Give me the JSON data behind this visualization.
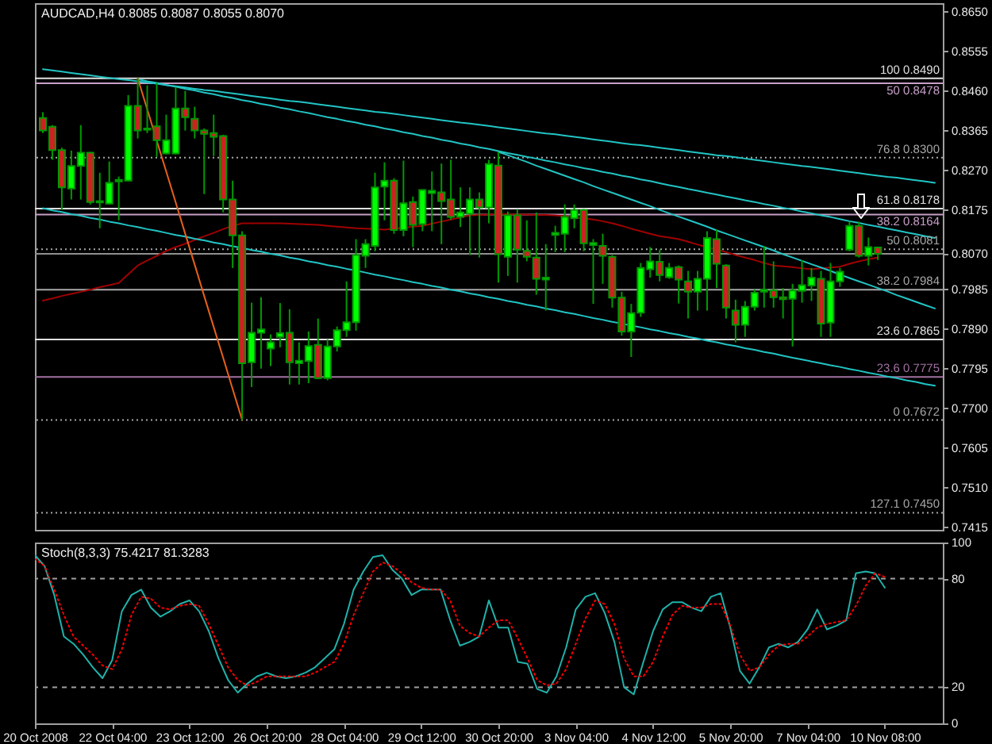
{
  "chart_data": [
    {
      "type": "candlestick",
      "title": "AUDCAD,H4 0.8085 0.8087 0.8055 0.8070",
      "categories": [
        null,
        null,
        null,
        null,
        null,
        null,
        null,
        null,
        null,
        null,
        null,
        null,
        null,
        null,
        null,
        null,
        null,
        null,
        null,
        null,
        null,
        null,
        null,
        null,
        null,
        null,
        null,
        null,
        null,
        null,
        null,
        null,
        null,
        null,
        null,
        null,
        null,
        null,
        null,
        null,
        null,
        null,
        null,
        null,
        null,
        null,
        null,
        null,
        null,
        null,
        null,
        null,
        null,
        null,
        null,
        null,
        null,
        null,
        null,
        null,
        null,
        null,
        null,
        null,
        null,
        null,
        null,
        null,
        null,
        null,
        null,
        null,
        null,
        null,
        null,
        null,
        null,
        null,
        null,
        null,
        null,
        null,
        null,
        null,
        null,
        null,
        null,
        null,
        null,
        null,
        null,
        null,
        null,
        null,
        null
      ],
      "ohlc": [
        [
          0.8395,
          0.8409,
          0.8359,
          0.8365
        ],
        [
          0.8374,
          0.8378,
          0.8295,
          0.8318
        ],
        [
          0.8318,
          0.8324,
          0.8175,
          0.8229
        ],
        [
          0.8226,
          0.8317,
          0.82,
          0.828
        ],
        [
          0.828,
          0.8378,
          0.82,
          0.8312
        ],
        [
          0.8312,
          0.8314,
          0.8188,
          0.8194
        ],
        [
          0.8193,
          0.8264,
          0.8131,
          0.8196
        ],
        [
          0.819,
          0.8291,
          0.8188,
          0.824
        ],
        [
          0.8243,
          0.8255,
          0.815,
          0.8247
        ],
        [
          0.8245,
          0.845,
          0.8244,
          0.8424
        ],
        [
          0.8424,
          0.849,
          0.8346,
          0.8365
        ],
        [
          0.8367,
          0.8473,
          0.8359,
          0.837
        ],
        [
          0.8375,
          0.8479,
          0.8302,
          0.8342
        ],
        [
          0.831,
          0.8403,
          0.8308,
          0.8342
        ],
        [
          0.831,
          0.8469,
          0.8308,
          0.8418
        ],
        [
          0.8418,
          0.846,
          0.8365,
          0.8397
        ],
        [
          0.8393,
          0.8422,
          0.8346,
          0.8365
        ],
        [
          0.8365,
          0.837,
          0.8213,
          0.8357
        ],
        [
          0.8359,
          0.8403,
          0.8304,
          0.835
        ],
        [
          0.8352,
          0.8355,
          0.8169,
          0.82
        ],
        [
          0.82,
          0.8245,
          0.8036,
          0.8114
        ],
        [
          0.8114,
          0.8124,
          0.7672,
          0.7808
        ],
        [
          0.781,
          0.7953,
          0.7751,
          0.7881
        ],
        [
          0.7881,
          0.7966,
          0.7795,
          0.7889
        ],
        [
          0.7843,
          0.7877,
          0.7801,
          0.7858
        ],
        [
          0.7871,
          0.7952,
          0.7846,
          0.788
        ],
        [
          0.7881,
          0.7937,
          0.7757,
          0.781
        ],
        [
          0.7808,
          0.7858,
          0.7757,
          0.7814
        ],
        [
          0.7813,
          0.7884,
          0.776,
          0.7849
        ],
        [
          0.7852,
          0.7915,
          0.777,
          0.7772
        ],
        [
          0.7772,
          0.7865,
          0.7767,
          0.7848
        ],
        [
          0.7848,
          0.7896,
          0.7836,
          0.7887
        ],
        [
          0.7887,
          0.8004,
          0.7871,
          0.7906
        ],
        [
          0.7906,
          0.8105,
          0.7886,
          0.8067
        ],
        [
          0.8065,
          0.8105,
          0.8036,
          0.8093
        ],
        [
          0.8089,
          0.8264,
          0.8076,
          0.8229
        ],
        [
          0.8231,
          0.8289,
          0.815,
          0.8245
        ],
        [
          0.8245,
          0.8251,
          0.8118,
          0.8127
        ],
        [
          0.8127,
          0.8293,
          0.8112,
          0.8191
        ],
        [
          0.8194,
          0.8207,
          0.8086,
          0.8139
        ],
        [
          0.8141,
          0.8224,
          0.8124,
          0.8223
        ],
        [
          0.8215,
          0.8267,
          0.8124,
          0.8221
        ],
        [
          0.8217,
          0.8286,
          0.8093,
          0.8196
        ],
        [
          0.82,
          0.8295,
          0.8152,
          0.8158
        ],
        [
          0.8158,
          0.8229,
          0.8134,
          0.8169
        ],
        [
          0.8166,
          0.8229,
          0.8067,
          0.82
        ],
        [
          0.82,
          0.8217,
          0.8061,
          0.8181
        ],
        [
          0.8181,
          0.8295,
          0.8143,
          0.8285
        ],
        [
          0.8281,
          0.8314,
          0.8001,
          0.8069
        ],
        [
          0.8063,
          0.8171,
          0.8017,
          0.8162
        ],
        [
          0.8162,
          0.8177,
          0.8001,
          0.808
        ],
        [
          0.8077,
          0.815,
          0.8052,
          0.8063
        ],
        [
          0.8061,
          0.8169,
          0.7972,
          0.801
        ],
        [
          0.8008,
          0.8093,
          0.7934,
          0.8013
        ],
        [
          0.8115,
          0.8137,
          0.8074,
          0.812
        ],
        [
          0.8118,
          0.8188,
          0.8074,
          0.8158
        ],
        [
          0.8155,
          0.8188,
          0.8131,
          0.8175
        ],
        [
          0.8175,
          0.8177,
          0.8076,
          0.8095
        ],
        [
          0.8091,
          0.8105,
          0.795,
          0.8096
        ],
        [
          0.8089,
          0.8118,
          0.7998,
          0.8065
        ],
        [
          0.8063,
          0.8067,
          0.7941,
          0.7965
        ],
        [
          0.7965,
          0.7979,
          0.7874,
          0.7884
        ],
        [
          0.7884,
          0.795,
          0.7823,
          0.7928
        ],
        [
          0.7929,
          0.8048,
          0.7919,
          0.8036
        ],
        [
          0.8033,
          0.8086,
          0.8013,
          0.8052
        ],
        [
          0.8051,
          0.808,
          0.8004,
          0.8019
        ],
        [
          0.8014,
          0.8048,
          0.801,
          0.8036
        ],
        [
          0.8038,
          0.8042,
          0.7951,
          0.8008
        ],
        [
          0.8004,
          0.8029,
          0.7915,
          0.7979
        ],
        [
          0.7979,
          0.8029,
          0.7934,
          0.801
        ],
        [
          0.801,
          0.8124,
          0.7934,
          0.8108
        ],
        [
          0.8105,
          0.8128,
          0.7988,
          0.8046
        ],
        [
          0.8042,
          0.8045,
          0.7915,
          0.7941
        ],
        [
          0.7934,
          0.796,
          0.7858,
          0.79
        ],
        [
          0.79,
          0.7957,
          0.7871,
          0.7943
        ],
        [
          0.7943,
          0.7985,
          0.7934,
          0.7977
        ],
        [
          0.7979,
          0.8089,
          0.7941,
          0.7984
        ],
        [
          0.7982,
          0.8052,
          0.7941,
          0.7966
        ],
        [
          0.7966,
          0.7988,
          0.7915,
          0.7961
        ],
        [
          0.7962,
          0.7998,
          0.7848,
          0.7982
        ],
        [
          0.7981,
          0.8055,
          0.7953,
          0.7995
        ],
        [
          0.7994,
          0.8036,
          0.7957,
          0.8013
        ],
        [
          0.801,
          0.8029,
          0.7871,
          0.7903
        ],
        [
          0.7905,
          0.8048,
          0.7871,
          0.8004
        ],
        [
          0.8004,
          0.8036,
          0.7991,
          0.8027
        ],
        [
          0.808,
          0.8147,
          0.8076,
          0.8137
        ],
        [
          0.8137,
          0.8147,
          0.8061,
          0.8065
        ],
        [
          0.8065,
          0.8109,
          0.8042,
          0.8086
        ],
        [
          0.8085,
          0.8087,
          0.8055,
          0.807
        ],
        null,
        null,
        null,
        null,
        null,
        null
      ],
      "color": "#009900",
      "colors": [
        "#cc2222",
        "#cc2222",
        "#cc2222",
        "#00ff00",
        "#00ff00",
        "#cc2222",
        "#00ff00",
        "#00ff00",
        "#00ff00",
        "#00ff00",
        "#cc2222",
        "#00ff00",
        "#cc2222",
        "#00ff00",
        "#00ff00",
        "#cc2222",
        "#cc2222",
        "#cc2222",
        "#cc2222",
        "#cc2222",
        "#cc2222",
        "#cc2222",
        "#00ff00",
        "#00ff00",
        "#00ff00",
        "#00ff00",
        "#cc2222",
        "#00ff00",
        "#00ff00",
        "#cc2222",
        "#00ff00",
        "#00ff00",
        "#00ff00",
        "#00ff00",
        "#00ff00",
        "#00ff00",
        "#00ff00",
        "#cc2222",
        "#00ff00",
        "#cc2222",
        "#00ff00",
        "#00ff00",
        "#cc2222",
        "#cc2222",
        "#00ff00",
        "#00ff00",
        "#cc2222",
        "#00ff00",
        "#cc2222",
        "#00ff00",
        "#cc2222",
        "#cc2222",
        "#cc2222",
        "#00ff00",
        "#00ff00",
        "#00ff00",
        "#00ff00",
        "#cc2222",
        "#00ff00",
        "#cc2222",
        "#cc2222",
        "#cc2222",
        "#00ff00",
        "#00ff00",
        "#00ff00",
        "#cc2222",
        "#00ff00",
        "#cc2222",
        "#cc2222",
        "#00ff00",
        "#00ff00",
        "#cc2222",
        "#cc2222",
        "#cc2222",
        "#00ff00",
        "#00ff00",
        "#00ff00",
        "#cc2222",
        "#cc2222",
        "#00ff00",
        "#00ff00",
        "#00ff00",
        "#cc2222",
        "#00ff00",
        "#00ff00",
        "#00ff00",
        "#cc2222",
        "#00ff00",
        "#cc2222",
        null,
        null,
        null,
        null,
        null,
        null
      ],
      "ylim": [
        0.7409,
        0.867
      ],
      "yticks": [
        {
          "value": 0.865,
          "label": "0.8650"
        },
        0.8555,
        {
          "value": 0.846,
          "label": "0.8460"
        },
        0.8365,
        {
          "value": 0.827,
          "label": "0.8270"
        },
        0.8175,
        {
          "value": 0.807,
          "label": "0.8070"
        },
        0.7985,
        {
          "value": 0.789,
          "label": "0.7890"
        },
        0.7795,
        {
          "value": 0.77,
          "label": "0.7700"
        },
        0.7605,
        {
          "value": 0.751,
          "label": "0.7510"
        },
        0.7415
      ],
      "series": [
        {
          "type": "line",
          "color": "#a00000",
          "values": [
            0.7958,
            0.7963,
            0.7969,
            0.7974,
            0.7979,
            0.7984,
            0.799,
            0.7995,
            0.8,
            0.8021,
            0.8042,
            0.8054,
            0.8065,
            0.8077,
            0.8086,
            0.8094,
            0.8103,
            0.8112,
            0.812,
            0.8129,
            0.8137,
            0.8143,
            0.8143,
            0.8143,
            0.8143,
            0.8143,
            0.8142,
            0.8141,
            0.814,
            0.8139,
            0.8137,
            0.8135,
            0.8133,
            0.8131,
            0.813,
            0.8129,
            0.8128,
            0.813,
            0.8132,
            0.8135,
            0.8137,
            0.8142,
            0.8147,
            0.8152,
            0.8157,
            0.8162,
            0.8163,
            0.8164,
            0.8165,
            0.8165,
            0.8164,
            0.8164,
            0.8163,
            0.8163,
            0.8162,
            0.816,
            0.8157,
            0.8155,
            0.8152,
            0.8148,
            0.8143,
            0.8137,
            0.813,
            0.8124,
            0.8118,
            0.8112,
            0.8109,
            0.8105,
            0.8099,
            0.8092,
            0.8086,
            0.808,
            0.8074,
            0.8067,
            0.8061,
            0.8055,
            0.8048,
            0.8042,
            0.804,
            0.8038,
            0.8035,
            0.8033,
            0.8035,
            0.8037,
            0.8039,
            0.8046,
            0.8052,
            0.8057,
            0.8061,
            null,
            null,
            null,
            null,
            null,
            null
          ]
        },
        {
          "type": "line",
          "color": "#22c4c4",
          "values": [
            0.8512,
            0.8509,
            0.8506,
            0.8503,
            0.85,
            0.8497,
            0.8494,
            0.8491,
            0.8488,
            0.8486,
            0.8483,
            0.848,
            0.8477,
            0.8474,
            0.8471,
            0.8468,
            0.8465,
            0.8462,
            0.846,
            0.8457,
            0.8454,
            0.8451,
            0.8448,
            0.8445,
            0.8442,
            0.8439,
            0.8436,
            0.8434,
            0.8431,
            0.8428,
            0.8425,
            0.8422,
            0.8419,
            0.8416,
            0.8413,
            0.841,
            0.8408,
            0.8405,
            0.8402,
            0.8399,
            0.8396,
            0.8393,
            0.839,
            0.8387,
            0.8384,
            0.8382,
            0.8379,
            0.8376,
            0.8373,
            0.837,
            0.8367,
            0.8364,
            0.8361,
            0.8358,
            0.8356,
            0.8353,
            0.835,
            0.8347,
            0.8344,
            0.8341,
            0.8338,
            0.8335,
            0.8332,
            0.833,
            0.8327,
            0.8324,
            0.8321,
            0.8318,
            0.8315,
            0.8312,
            0.8309,
            0.8306,
            0.8304,
            0.8301,
            0.8298,
            0.8295,
            0.8292,
            0.8289,
            0.8286,
            0.8283,
            0.828,
            0.8278,
            0.8275,
            0.8272,
            0.8269,
            0.8266,
            0.8263,
            0.826,
            0.8257,
            0.8254,
            0.8252,
            0.8249,
            0.8246,
            0.8243,
            0.824
          ]
        },
        {
          "type": "line",
          "color": "#22c4c4",
          "values": [
            null,
            null,
            null,
            null,
            null,
            null,
            null,
            null,
            null,
            null,
            0.8488,
            0.8483,
            0.8479,
            0.8474,
            0.847,
            0.8465,
            0.8461,
            0.8456,
            0.8452,
            0.8447,
            0.8443,
            0.8438,
            0.8434,
            0.8429,
            0.8425,
            0.842,
            0.8416,
            0.8411,
            0.8407,
            0.8402,
            0.8397,
            0.8393,
            0.8388,
            0.8384,
            0.8379,
            0.8375,
            0.837,
            0.8366,
            0.8361,
            0.8357,
            0.8352,
            0.8348,
            0.8343,
            0.8339,
            0.8334,
            0.833,
            0.8325,
            0.8321,
            0.8316,
            0.8311,
            0.8307,
            0.8302,
            0.8298,
            0.8293,
            0.8289,
            0.8284,
            0.828,
            0.8275,
            0.8271,
            0.8266,
            0.8262,
            0.8257,
            0.8253,
            0.8248,
            0.8244,
            0.8239,
            0.8234,
            0.823,
            0.8225,
            0.8221,
            0.8216,
            0.8212,
            0.8207,
            0.8203,
            0.8198,
            0.8194,
            0.8189,
            0.8185,
            0.818,
            0.8176,
            0.8171,
            0.8167,
            0.8162,
            0.8158,
            0.8153,
            0.8148,
            0.8144,
            0.8139,
            0.8135,
            0.813,
            0.8126,
            0.8121,
            0.8117,
            0.8112,
            0.8108
          ]
        },
        {
          "type": "line",
          "color": "#22c4c4",
          "values": [
            0.8179,
            0.8174,
            0.817,
            0.8165,
            0.8161,
            0.8156,
            0.8152,
            0.8147,
            0.8143,
            0.8138,
            0.8134,
            0.8129,
            0.8125,
            0.812,
            0.8115,
            0.8111,
            0.8106,
            0.8102,
            0.8097,
            0.8093,
            0.8088,
            0.8084,
            0.8079,
            0.8075,
            0.807,
            0.8066,
            0.8061,
            0.8057,
            0.8052,
            0.8048,
            0.8043,
            0.8039,
            0.8034,
            0.803,
            0.8025,
            0.802,
            0.8016,
            0.8011,
            0.8007,
            0.8002,
            0.7998,
            0.7993,
            0.7989,
            0.7984,
            0.798,
            0.7975,
            0.7971,
            0.7966,
            0.7962,
            0.7957,
            0.7953,
            0.7948,
            0.7944,
            0.7939,
            0.7935,
            0.793,
            0.7926,
            0.7921,
            0.7916,
            0.7912,
            0.7907,
            0.7903,
            0.7898,
            0.7894,
            0.7889,
            0.7885,
            0.788,
            0.7876,
            0.7871,
            0.7867,
            0.7862,
            0.7858,
            0.7853,
            0.7849,
            0.7844,
            0.784,
            0.7835,
            0.7831,
            0.7826,
            0.7821,
            0.7817,
            0.7812,
            0.7808,
            0.7803,
            0.7799,
            0.7794,
            0.779,
            0.7785,
            0.7781,
            0.7776,
            0.7772,
            0.7767,
            0.7763,
            0.7758,
            0.7754
          ]
        },
        {
          "type": "line",
          "color": "#22c4c4",
          "values": [
            null,
            null,
            null,
            null,
            null,
            null,
            null,
            null,
            null,
            null,
            null,
            null,
            null,
            null,
            null,
            null,
            null,
            null,
            null,
            null,
            null,
            null,
            null,
            null,
            null,
            null,
            null,
            null,
            null,
            null,
            null,
            null,
            null,
            null,
            null,
            null,
            null,
            null,
            null,
            null,
            null,
            null,
            null,
            null,
            null,
            null,
            null,
            null,
            0.8314,
            0.8306,
            0.8298,
            0.829,
            0.8281,
            0.8273,
            0.8265,
            0.8257,
            0.8249,
            0.8241,
            0.8232,
            0.8224,
            0.8216,
            0.8208,
            0.82,
            0.8192,
            0.8184,
            0.8175,
            0.8167,
            0.8159,
            0.8151,
            0.8143,
            0.8135,
            0.8126,
            0.8118,
            0.811,
            0.8102,
            0.8094,
            0.8086,
            0.8078,
            0.8069,
            0.8061,
            0.8053,
            0.8045,
            0.8037,
            0.8029,
            0.802,
            0.8012,
            0.8004,
            0.7996,
            0.7988,
            0.798,
            0.7971,
            0.7963,
            0.7955,
            0.7947,
            0.7939
          ]
        },
        {
          "type": "line",
          "color": "#e8601c",
          "values": [
            null,
            null,
            null,
            null,
            null,
            null,
            null,
            null,
            null,
            null,
            0.849,
            0.8416,
            0.8341,
            0.8267,
            0.8193,
            0.8118,
            0.8044,
            0.7969,
            0.7895,
            0.7821,
            0.7746,
            0.7672,
            null,
            null,
            null,
            null,
            null,
            null,
            null,
            null,
            null,
            null,
            null,
            null,
            null,
            null,
            null,
            null,
            null,
            null,
            null,
            null,
            null,
            null,
            null,
            null,
            null,
            null,
            null,
            null,
            null,
            null,
            null,
            null,
            null,
            null,
            null,
            null,
            null,
            null,
            null,
            null,
            null,
            null,
            null,
            null,
            null,
            null,
            null,
            null,
            null,
            null,
            null,
            null,
            null,
            null,
            null,
            null,
            null,
            null,
            null,
            null,
            null,
            null,
            null,
            null,
            null,
            null,
            null,
            null,
            null,
            null,
            null,
            null,
            null
          ]
        }
      ],
      "ref_lines": [
        {
          "axis": "y",
          "value": 0.849,
          "label": "100 0.8490",
          "color": "#e0e0e0"
        },
        {
          "axis": "y",
          "value": 0.8478,
          "label": "50 0.8478",
          "color": "#c8a0c8"
        },
        {
          "axis": "y",
          "value": 0.83,
          "label": "76.8 0.8300",
          "color": "#a8a8a8",
          "line_style": "dotted"
        },
        {
          "axis": "y",
          "value": 0.8178,
          "label": "61.8 0.8178",
          "color": "#e0e0e0"
        },
        {
          "axis": "y",
          "value": 0.8164,
          "label": "38.2 0.8164",
          "color": "#c8a0c8"
        },
        {
          "axis": "y",
          "value": 0.8081,
          "label": "50 0.8081",
          "color": "#a8a8a8",
          "line_style": "dotted"
        },
        {
          "axis": "y",
          "value": 0.807,
          "color": "#909090"
        },
        {
          "axis": "y",
          "value": 0.7984,
          "label": "38.2 0.7984",
          "color": "#a8a8a8"
        },
        {
          "axis": "y",
          "value": 0.7865,
          "label": "23.6 0.7865",
          "color": "#e0e0e0"
        },
        {
          "axis": "y",
          "value": 0.7775,
          "label": "23.6 0.7775",
          "color": "#a070a0"
        },
        {
          "axis": "y",
          "value": 0.7672,
          "label": "0 0.7672",
          "color": "#a8a8a8",
          "line_style": "dotted"
        },
        {
          "axis": "y",
          "value": 0.745,
          "label": "127.1 0.7450",
          "color": "#a8a8a8",
          "line_style": "dotted"
        }
      ]
    },
    {
      "type": "line",
      "title": "Stoch(8,3,3) 75.4217 81.3283",
      "categories": [
        "20 Oct 2008",
        null,
        null,
        null,
        null,
        null,
        null,
        null,
        "22 Oct 04:00",
        null,
        null,
        null,
        null,
        null,
        null,
        null,
        "23 Oct 12:00",
        null,
        null,
        null,
        null,
        null,
        null,
        null,
        "26 Oct 20:00",
        null,
        null,
        null,
        null,
        null,
        null,
        null,
        "28 Oct 04:00",
        null,
        null,
        null,
        null,
        null,
        null,
        null,
        "29 Oct 12:00",
        null,
        null,
        null,
        null,
        null,
        null,
        null,
        "30 Oct 20:00",
        null,
        null,
        null,
        null,
        null,
        null,
        null,
        "3 Nov 04:00",
        null,
        null,
        null,
        null,
        null,
        null,
        null,
        "4 Nov 12:00",
        null,
        null,
        null,
        null,
        null,
        null,
        null,
        "5 Nov 20:00",
        null,
        null,
        null,
        null,
        null,
        null,
        null,
        "7 Nov 04:00",
        null,
        null,
        null,
        null,
        null,
        null,
        null,
        "10 Nov 08:00",
        null,
        null,
        null,
        null,
        null,
        null
      ],
      "series": [
        {
          "color": "#20b2aa",
          "values": [
            93,
            87,
            71,
            48,
            44,
            38,
            31,
            25,
            35,
            62,
            71,
            74,
            64,
            59,
            62,
            66,
            68,
            62,
            51,
            36,
            24,
            17,
            22,
            26,
            28,
            26,
            25,
            26,
            28,
            31,
            36,
            41,
            55,
            74,
            84,
            92,
            93,
            85,
            80,
            71,
            74,
            74,
            74,
            57,
            43,
            45,
            48,
            68,
            53,
            53,
            34,
            33,
            19,
            17,
            26,
            42,
            63,
            70,
            72,
            61,
            45,
            20,
            16,
            34,
            51,
            63,
            67,
            67,
            64,
            62,
            70,
            72,
            53,
            29,
            22,
            31,
            42,
            44,
            42,
            45,
            52,
            63,
            52,
            54,
            57,
            83,
            84,
            83,
            75,
            null,
            null,
            null,
            null,
            null,
            null
          ]
        },
        {
          "color": "#ff0000",
          "line_style": "dotted",
          "values": [
            91,
            87,
            74,
            60,
            48,
            43,
            38,
            32,
            30,
            41,
            60,
            70,
            69,
            64,
            63,
            65,
            66,
            65,
            55,
            43,
            31,
            24,
            21,
            23,
            26,
            26,
            26,
            26,
            26,
            28,
            31,
            34,
            44,
            60,
            72,
            84,
            89,
            87,
            83,
            78,
            75,
            74,
            74,
            68,
            54,
            50,
            48,
            53,
            57,
            57,
            47,
            36,
            24,
            21,
            22,
            30,
            44,
            58,
            68,
            66,
            55,
            36,
            26,
            26,
            34,
            48,
            60,
            65,
            64,
            64,
            66,
            66,
            54,
            38,
            29,
            31,
            38,
            43,
            44,
            44,
            48,
            53,
            55,
            56,
            57,
            65,
            76,
            83,
            81,
            null,
            null,
            null,
            null,
            null,
            null
          ]
        }
      ],
      "ylim": [
        0,
        100
      ],
      "yticks": [
        0,
        20,
        80,
        100
      ],
      "ref_lines": [
        {
          "axis": "y",
          "value": 20,
          "color": "#a0a0a0",
          "line_style": "dashed"
        },
        {
          "axis": "y",
          "value": 80,
          "color": "#a0a0a0",
          "line_style": "dashed"
        }
      ]
    }
  ]
}
